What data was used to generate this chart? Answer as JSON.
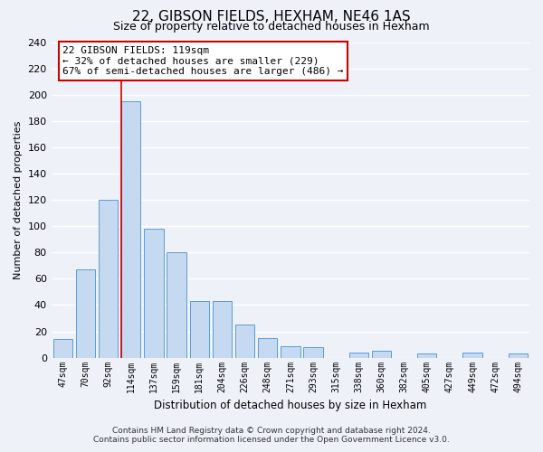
{
  "title": "22, GIBSON FIELDS, HEXHAM, NE46 1AS",
  "subtitle": "Size of property relative to detached houses in Hexham",
  "xlabel": "Distribution of detached houses by size in Hexham",
  "ylabel": "Number of detached properties",
  "bar_labels": [
    "47sqm",
    "70sqm",
    "92sqm",
    "114sqm",
    "137sqm",
    "159sqm",
    "181sqm",
    "204sqm",
    "226sqm",
    "248sqm",
    "271sqm",
    "293sqm",
    "315sqm",
    "338sqm",
    "360sqm",
    "382sqm",
    "405sqm",
    "427sqm",
    "449sqm",
    "472sqm",
    "494sqm"
  ],
  "bar_values": [
    14,
    67,
    120,
    195,
    98,
    80,
    43,
    43,
    25,
    15,
    9,
    8,
    0,
    4,
    5,
    0,
    3,
    0,
    4,
    0,
    3
  ],
  "bar_color": "#c5d9f0",
  "bar_edge_color": "#5b9bd5",
  "highlight_index": 3,
  "highlight_line_color": "#cc0000",
  "annotation_line1": "22 GIBSON FIELDS: 119sqm",
  "annotation_line2": "← 32% of detached houses are smaller (229)",
  "annotation_line3": "67% of semi-detached houses are larger (486) →",
  "annotation_box_color": "#ffffff",
  "annotation_box_edge_color": "#cc0000",
  "ylim": [
    0,
    240
  ],
  "yticks": [
    0,
    20,
    40,
    60,
    80,
    100,
    120,
    140,
    160,
    180,
    200,
    220,
    240
  ],
  "footer_line1": "Contains HM Land Registry data © Crown copyright and database right 2024.",
  "footer_line2": "Contains public sector information licensed under the Open Government Licence v3.0.",
  "bg_color": "#eef2f8",
  "grid_color": "#ffffff",
  "title_fontsize": 11,
  "subtitle_fontsize": 9
}
